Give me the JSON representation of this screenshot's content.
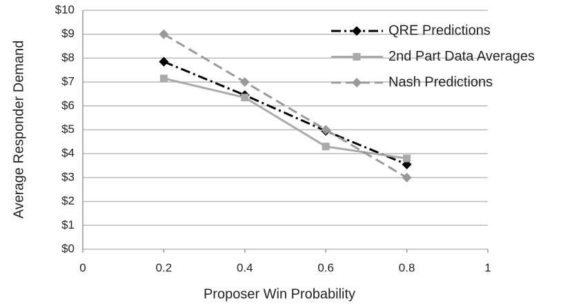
{
  "chart_data": {
    "type": "line",
    "xlabel": "Proposer Win Probability",
    "ylabel": "Average Responder Demand",
    "x": [
      0.2,
      0.4,
      0.6,
      0.8
    ],
    "series": [
      {
        "name": "QRE Predictions",
        "color": "#000000",
        "dash": "dash-dot",
        "marker": "diamond",
        "values": [
          7.85,
          6.45,
          4.95,
          3.55
        ]
      },
      {
        "name": "2nd Part Data Averages",
        "color": "#aaaaaa",
        "dash": "solid",
        "marker": "square",
        "values": [
          7.15,
          6.35,
          4.3,
          3.8
        ]
      },
      {
        "name": "Nash Predictions",
        "color": "#999999",
        "dash": "dash",
        "marker": "diamond",
        "values": [
          9,
          7,
          5,
          3
        ]
      }
    ],
    "xlim": [
      0,
      1
    ],
    "xticks": [
      0,
      0.2,
      0.4,
      0.6,
      0.8,
      1
    ],
    "ylim": [
      0,
      10
    ],
    "yticks": [
      {
        "value": 0,
        "label": "$0"
      },
      {
        "value": 1,
        "label": "$1"
      },
      {
        "value": 2,
        "label": "$2"
      },
      {
        "value": 3,
        "label": "$3"
      },
      {
        "value": 4,
        "label": "$4"
      },
      {
        "value": 5,
        "label": "$5"
      },
      {
        "value": 6,
        "label": "$6"
      },
      {
        "value": 7,
        "label": "$7"
      },
      {
        "value": 8,
        "label": "$8"
      },
      {
        "value": 9,
        "label": "$9"
      },
      {
        "value": 10,
        "label": "$10"
      }
    ],
    "grid": true,
    "legend": "upper right"
  }
}
